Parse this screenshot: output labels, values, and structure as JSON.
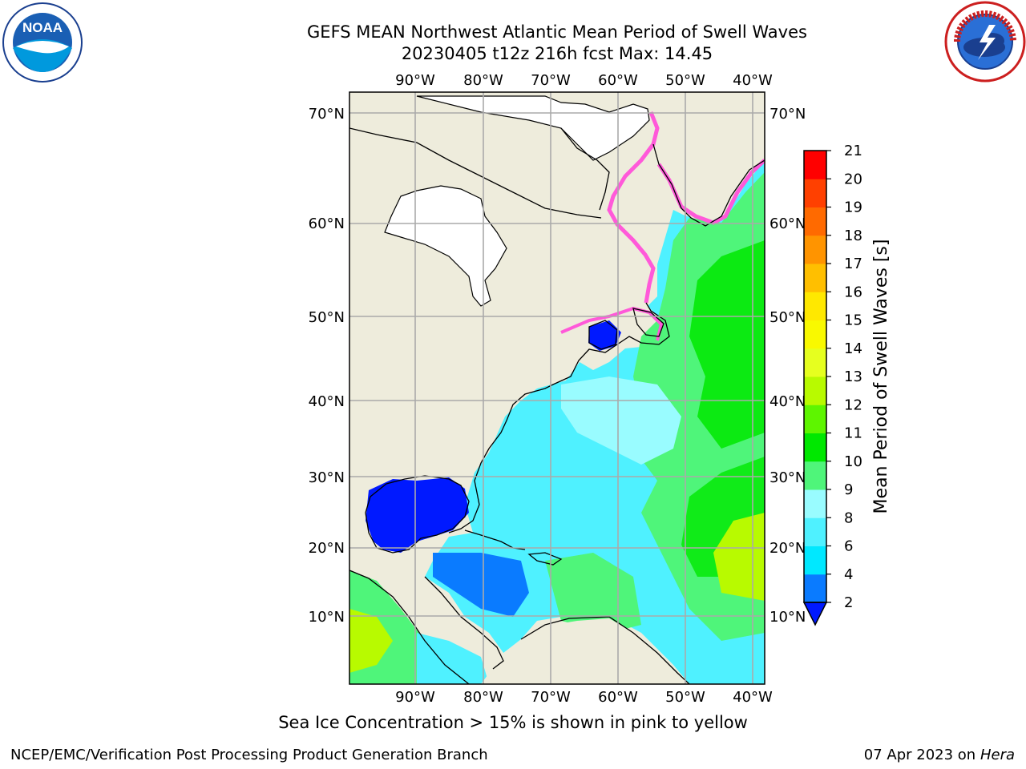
{
  "title_line1": "GEFS MEAN Northwest Atlantic Mean Period of Swell Waves",
  "title_line2": "20230405 t12z 216h fcst   Max: 14.45",
  "caption": "Sea Ice Concentration > 15% is shown in pink to yellow",
  "footer_left": "NCEP/EMC/Verification Post Processing Product Generation Branch",
  "footer_date": "07 Apr 2023 on ",
  "footer_host": "Hera",
  "logos": {
    "left": "NOAA",
    "right": "NATIONAL WEATHER SERVICE"
  },
  "axes": {
    "lon_labels": [
      "90°W",
      "80°W",
      "70°W",
      "60°W",
      "50°W",
      "40°W"
    ],
    "lat_labels": [
      "70°N",
      "60°N",
      "50°N",
      "40°N",
      "30°N",
      "20°N",
      "10°N"
    ]
  },
  "colorbar": {
    "label": "Mean Period of Swell Waves [s]",
    "ticks": [
      "2",
      "4",
      "6",
      "8",
      "9",
      "10",
      "11",
      "12",
      "13",
      "14",
      "15",
      "16",
      "17",
      "18",
      "19",
      "20",
      "21"
    ],
    "colors": [
      "#0a7bff",
      "#00e8ff",
      "#4ff1ff",
      "#99fcff",
      "#4ff57a",
      "#00e800",
      "#5ef500",
      "#b8fa00",
      "#e6ff1f",
      "#f9f900",
      "#ffe800",
      "#ffbf00",
      "#ff9400",
      "#ff6a00",
      "#ff4000",
      "#ff0000"
    ],
    "under_color": "#0019ff"
  },
  "colors": {
    "land": "#eeecdc",
    "ocean_deep": "#0019ff",
    "ocean": "#4ff1ff",
    "grid": "#aaaaaa",
    "ice": "#ff59d9"
  }
}
